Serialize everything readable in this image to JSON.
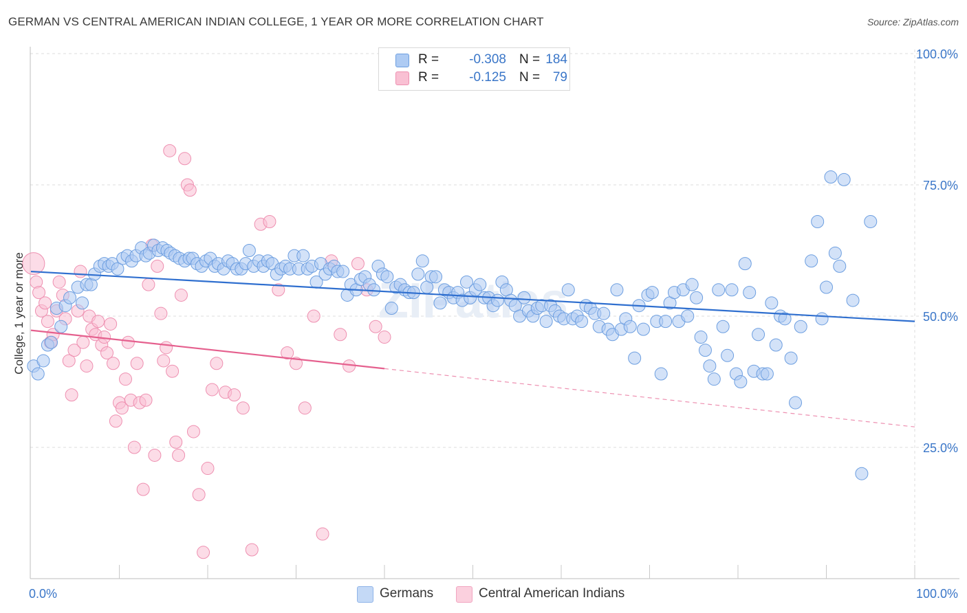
{
  "title": "GERMAN VS CENTRAL AMERICAN INDIAN COLLEGE, 1 YEAR OR MORE CORRELATION CHART",
  "source": "Source: ZipAtlas.com",
  "watermark": "ZIPatlas",
  "legend": {
    "rows": [
      {
        "r_label": "R =",
        "r_value": "-0.308",
        "n_label": "N =",
        "n_value": "184",
        "color": "#aecbf3"
      },
      {
        "r_label": "R =",
        "r_value": "-0.125",
        "n_label": "N =",
        "n_value": "79",
        "color": "#f9c0d3"
      }
    ]
  },
  "bottom_legend": {
    "germans": "Germans",
    "central": "Central American Indians"
  },
  "colors": {
    "blue_fill": "#aecbf3",
    "blue_stroke": "#6c9ee0",
    "blue_line": "#2f6fcf",
    "pink_fill": "#f9c0d3",
    "pink_stroke": "#ee8fb0",
    "pink_line": "#e5608e",
    "axis_label": "#3a76c8",
    "grid": "#dcdcdc"
  },
  "chart_data": {
    "type": "scatter",
    "title": "GERMAN VS CENTRAL AMERICAN INDIAN COLLEGE, 1 YEAR OR MORE CORRELATION CHART",
    "xlabel": "",
    "ylabel": "College, 1 year or more",
    "xlim": [
      0,
      100
    ],
    "ylim": [
      0,
      100
    ],
    "x_tick_labels": [
      "0.0%",
      "100.0%"
    ],
    "y_tick_labels": [
      "25.0%",
      "50.0%",
      "75.0%",
      "100.0%"
    ],
    "y_ticks": [
      25,
      50,
      75,
      100
    ],
    "grid": true,
    "legend_position": "top-center",
    "series": [
      {
        "name": "Germans",
        "r": -0.308,
        "n": 184,
        "trend": {
          "x0": 0,
          "y0": 58.5,
          "x1": 100,
          "y1": 49.0
        },
        "points": [
          [
            0.3,
            40.5
          ],
          [
            0.8,
            39
          ],
          [
            1.4,
            41.5
          ],
          [
            1.9,
            44.5
          ],
          [
            2.3,
            45
          ],
          [
            2.9,
            51.5
          ],
          [
            3.4,
            48
          ],
          [
            3.9,
            52
          ],
          [
            4.4,
            53.5
          ],
          [
            5.3,
            55.5
          ],
          [
            5.8,
            52.5
          ],
          [
            6.3,
            56
          ],
          [
            6.8,
            56
          ],
          [
            7.2,
            58
          ],
          [
            7.8,
            59.5
          ],
          [
            8.3,
            60
          ],
          [
            8.8,
            59.5
          ],
          [
            9.2,
            60
          ],
          [
            9.8,
            59
          ],
          [
            10.4,
            61
          ],
          [
            10.9,
            61.5
          ],
          [
            11.4,
            60.5
          ],
          [
            11.9,
            61.5
          ],
          [
            12.5,
            63
          ],
          [
            13.0,
            61.5
          ],
          [
            13.4,
            62
          ],
          [
            13.9,
            63.5
          ],
          [
            14.4,
            62.5
          ],
          [
            14.9,
            63
          ],
          [
            15.4,
            62.5
          ],
          [
            15.8,
            62
          ],
          [
            16.3,
            61.5
          ],
          [
            16.8,
            61
          ],
          [
            17.4,
            60.5
          ],
          [
            17.9,
            61
          ],
          [
            18.3,
            61
          ],
          [
            18.8,
            60
          ],
          [
            19.3,
            59.5
          ],
          [
            19.8,
            60.5
          ],
          [
            20.3,
            61
          ],
          [
            20.8,
            59.5
          ],
          [
            21.2,
            60
          ],
          [
            21.8,
            59
          ],
          [
            22.3,
            60.5
          ],
          [
            22.8,
            60
          ],
          [
            23.3,
            59
          ],
          [
            23.8,
            59
          ],
          [
            24.3,
            60
          ],
          [
            24.7,
            62.5
          ],
          [
            25.2,
            59.5
          ],
          [
            25.8,
            60.5
          ],
          [
            26.3,
            59.5
          ],
          [
            26.8,
            60.5
          ],
          [
            27.3,
            60
          ],
          [
            27.8,
            58
          ],
          [
            28.3,
            59
          ],
          [
            28.8,
            59.5
          ],
          [
            29.3,
            59
          ],
          [
            29.8,
            61.5
          ],
          [
            30.3,
            59
          ],
          [
            30.8,
            61.5
          ],
          [
            31.3,
            59
          ],
          [
            31.8,
            59.5
          ],
          [
            32.3,
            56.5
          ],
          [
            32.8,
            60
          ],
          [
            33.3,
            58
          ],
          [
            33.8,
            59
          ],
          [
            34.3,
            59.5
          ],
          [
            34.7,
            58.5
          ],
          [
            35.3,
            58.5
          ],
          [
            35.8,
            54
          ],
          [
            36.2,
            56
          ],
          [
            36.8,
            55
          ],
          [
            37.3,
            57
          ],
          [
            37.8,
            57.5
          ],
          [
            38.3,
            56
          ],
          [
            38.8,
            55
          ],
          [
            39.3,
            59.5
          ],
          [
            39.8,
            58
          ],
          [
            40.3,
            57.5
          ],
          [
            40.8,
            51.5
          ],
          [
            41.3,
            55.5
          ],
          [
            41.8,
            56
          ],
          [
            42.3,
            55
          ],
          [
            42.8,
            54.5
          ],
          [
            43.3,
            54.5
          ],
          [
            43.8,
            58
          ],
          [
            44.3,
            60.5
          ],
          [
            44.8,
            55.5
          ],
          [
            45.3,
            57.5
          ],
          [
            45.8,
            57.5
          ],
          [
            46.3,
            52.5
          ],
          [
            46.8,
            55
          ],
          [
            47.3,
            54.5
          ],
          [
            47.8,
            53.5
          ],
          [
            48.3,
            54.5
          ],
          [
            48.8,
            53
          ],
          [
            49.3,
            56.5
          ],
          [
            49.7,
            53.5
          ],
          [
            50.3,
            55
          ],
          [
            50.8,
            56
          ],
          [
            51.3,
            53.5
          ],
          [
            51.8,
            53.5
          ],
          [
            52.3,
            52
          ],
          [
            52.8,
            53
          ],
          [
            53.3,
            56.5
          ],
          [
            53.8,
            55
          ],
          [
            54.3,
            53
          ],
          [
            54.8,
            52
          ],
          [
            55.3,
            50
          ],
          [
            55.8,
            53.5
          ],
          [
            56.3,
            51
          ],
          [
            56.8,
            50
          ],
          [
            57.3,
            51.5
          ],
          [
            57.8,
            52
          ],
          [
            58.3,
            49
          ],
          [
            58.8,
            52
          ],
          [
            59.3,
            51
          ],
          [
            59.8,
            50
          ],
          [
            60.3,
            49.5
          ],
          [
            60.8,
            55
          ],
          [
            61.3,
            49.5
          ],
          [
            61.8,
            50
          ],
          [
            62.3,
            49
          ],
          [
            62.8,
            52
          ],
          [
            63.3,
            51.5
          ],
          [
            63.8,
            50.5
          ],
          [
            64.3,
            48
          ],
          [
            64.8,
            50.5
          ],
          [
            65.3,
            47.5
          ],
          [
            65.8,
            46.5
          ],
          [
            66.3,
            55
          ],
          [
            66.8,
            47.5
          ],
          [
            67.3,
            49.5
          ],
          [
            67.8,
            48
          ],
          [
            68.3,
            42
          ],
          [
            68.8,
            52
          ],
          [
            69.3,
            47.5
          ],
          [
            69.8,
            54
          ],
          [
            70.3,
            54.5
          ],
          [
            70.8,
            49
          ],
          [
            71.3,
            39
          ],
          [
            71.8,
            49
          ],
          [
            72.3,
            52.5
          ],
          [
            72.8,
            54.5
          ],
          [
            73.3,
            49
          ],
          [
            73.8,
            55
          ],
          [
            74.3,
            50
          ],
          [
            74.8,
            56
          ],
          [
            75.3,
            53.5
          ],
          [
            75.8,
            46
          ],
          [
            76.3,
            43.5
          ],
          [
            76.8,
            40.5
          ],
          [
            77.3,
            38
          ],
          [
            77.8,
            55
          ],
          [
            78.3,
            48
          ],
          [
            78.8,
            42.5
          ],
          [
            79.3,
            55
          ],
          [
            79.8,
            39
          ],
          [
            80.3,
            37.5
          ],
          [
            80.8,
            60
          ],
          [
            81.3,
            54.5
          ],
          [
            81.8,
            39.5
          ],
          [
            82.3,
            46.5
          ],
          [
            82.8,
            39
          ],
          [
            83.3,
            39
          ],
          [
            83.8,
            52.5
          ],
          [
            84.3,
            44.5
          ],
          [
            84.8,
            50
          ],
          [
            85.3,
            49.5
          ],
          [
            86.0,
            42
          ],
          [
            86.5,
            33.5
          ],
          [
            87.1,
            48
          ],
          [
            88.3,
            60.5
          ],
          [
            89.0,
            68
          ],
          [
            89.5,
            49.5
          ],
          [
            90.0,
            55.5
          ],
          [
            90.5,
            76.5
          ],
          [
            91.0,
            62
          ],
          [
            91.5,
            59.5
          ],
          [
            92.0,
            76
          ],
          [
            93.0,
            53
          ],
          [
            94.0,
            20
          ],
          [
            95.0,
            68
          ]
        ]
      },
      {
        "name": "Central American Indians",
        "r": -0.125,
        "n": 79,
        "trend": {
          "x0": 0,
          "y0": 47.3,
          "x1": 40,
          "y1": 40.0
        },
        "trend_dashed": {
          "x0": 40,
          "y0": 40.0,
          "x1": 100,
          "y1": 28.9
        },
        "points": [
          [
            0.3,
            60
          ],
          [
            0.6,
            56.5
          ],
          [
            0.9,
            54.5
          ],
          [
            1.2,
            51
          ],
          [
            1.6,
            52.5
          ],
          [
            1.9,
            49
          ],
          [
            2.2,
            45
          ],
          [
            2.5,
            46.5
          ],
          [
            2.9,
            51
          ],
          [
            3.2,
            56.5
          ],
          [
            3.6,
            54
          ],
          [
            3.9,
            49.5
          ],
          [
            4.3,
            41.5
          ],
          [
            4.6,
            35
          ],
          [
            4.9,
            43.5
          ],
          [
            5.3,
            51
          ],
          [
            5.6,
            58.5
          ],
          [
            5.9,
            45
          ],
          [
            6.3,
            40.5
          ],
          [
            6.6,
            50
          ],
          [
            6.9,
            47.5
          ],
          [
            7.3,
            46.5
          ],
          [
            7.6,
            49
          ],
          [
            8.0,
            44.5
          ],
          [
            8.3,
            46
          ],
          [
            8.6,
            43
          ],
          [
            9.0,
            48.5
          ],
          [
            9.3,
            41
          ],
          [
            9.6,
            30
          ],
          [
            10.0,
            33.5
          ],
          [
            10.3,
            32.5
          ],
          [
            10.7,
            38
          ],
          [
            11.0,
            45
          ],
          [
            11.3,
            34
          ],
          [
            11.7,
            25
          ],
          [
            12.0,
            41
          ],
          [
            12.3,
            33.5
          ],
          [
            12.7,
            17
          ],
          [
            13.0,
            34
          ],
          [
            13.3,
            56
          ],
          [
            13.7,
            63.5
          ],
          [
            14.0,
            23.5
          ],
          [
            14.3,
            59.5
          ],
          [
            14.7,
            50.5
          ],
          [
            15.0,
            41.5
          ],
          [
            15.3,
            44
          ],
          [
            15.7,
            81.5
          ],
          [
            16.0,
            39.5
          ],
          [
            16.4,
            26
          ],
          [
            16.7,
            23.5
          ],
          [
            17.0,
            54
          ],
          [
            17.4,
            80
          ],
          [
            17.7,
            75
          ],
          [
            18.0,
            74
          ],
          [
            18.4,
            28
          ],
          [
            19.0,
            16
          ],
          [
            19.5,
            5
          ],
          [
            20.0,
            21
          ],
          [
            20.5,
            36
          ],
          [
            21.0,
            41
          ],
          [
            22.0,
            35.5
          ],
          [
            23.0,
            35
          ],
          [
            24.0,
            32.5
          ],
          [
            25.0,
            5.5
          ],
          [
            26.0,
            67.5
          ],
          [
            27.0,
            68
          ],
          [
            28.0,
            55
          ],
          [
            29.0,
            43
          ],
          [
            30.0,
            41
          ],
          [
            31.0,
            32.5
          ],
          [
            32.0,
            50
          ],
          [
            33.0,
            8.5
          ],
          [
            34.0,
            60.5
          ],
          [
            35.0,
            46.5
          ],
          [
            36.0,
            40.5
          ],
          [
            37.0,
            60
          ],
          [
            38.0,
            55
          ],
          [
            39.0,
            48
          ],
          [
            40.0,
            46
          ]
        ]
      }
    ]
  }
}
